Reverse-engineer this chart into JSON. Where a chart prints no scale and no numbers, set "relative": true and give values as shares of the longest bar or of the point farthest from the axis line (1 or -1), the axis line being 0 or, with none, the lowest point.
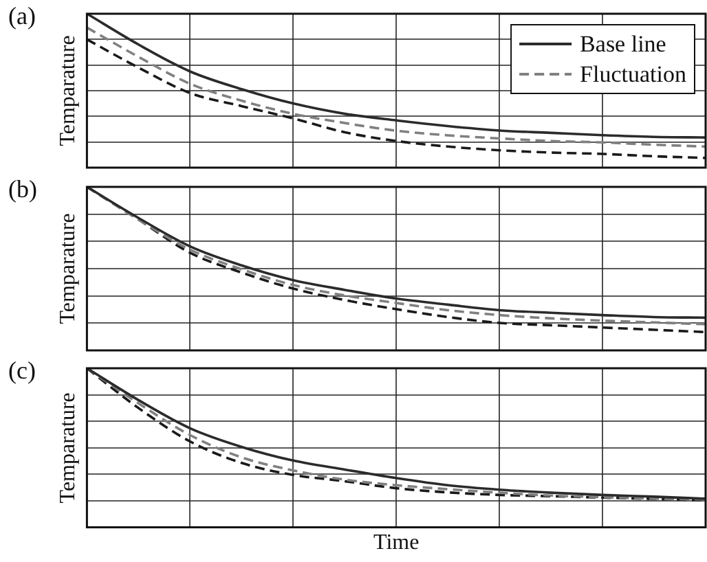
{
  "chart_data": [
    {
      "type": "line",
      "title": "(a)",
      "ylabel": "Temparature",
      "relative": true,
      "grid": true,
      "legend": "top right",
      "tick_labels": false,
      "categories": [
        null,
        null,
        null,
        null,
        null,
        null,
        null,
        null,
        null,
        null,
        null,
        null,
        null
      ],
      "series": [
        {
          "name": "Base line",
          "color": "#2b2b2b",
          "line_style": "solid",
          "values": [
            1.0,
            0.8,
            0.625,
            0.51,
            0.417,
            0.35,
            0.307,
            0.27,
            0.241,
            0.226,
            0.211,
            0.2,
            0.196
          ]
        },
        {
          "name": "Fluctuation",
          "color": "#808080",
          "line_style": "dashed",
          "values": [
            0.91,
            0.72,
            0.545,
            0.435,
            0.35,
            0.29,
            0.24,
            0.21,
            0.19,
            0.173,
            0.164,
            0.149,
            0.137
          ]
        },
        {
          "color": "#1a1a1a",
          "line_style": "dashed",
          "values": [
            0.833,
            0.65,
            0.485,
            0.4,
            0.32,
            0.23,
            0.173,
            0.137,
            0.113,
            0.098,
            0.089,
            0.074,
            0.063
          ]
        }
      ]
    },
    {
      "type": "line",
      "title": "(b)",
      "ylabel": "Temparature",
      "relative": true,
      "grid": true,
      "tick_labels": false,
      "categories": [
        null,
        null,
        null,
        null,
        null,
        null,
        null,
        null,
        null,
        null,
        null,
        null,
        null
      ],
      "series": [
        {
          "color": "#2b2b2b",
          "line_style": "solid",
          "values": [
            1.0,
            0.81,
            0.636,
            0.52,
            0.43,
            0.37,
            0.317,
            0.28,
            0.246,
            0.23,
            0.216,
            0.204,
            0.2
          ]
        },
        {
          "color": "#808080",
          "line_style": "dashed",
          "values": [
            1.0,
            0.8,
            0.616,
            0.496,
            0.4,
            0.336,
            0.29,
            0.246,
            0.216,
            0.196,
            0.182,
            0.171,
            0.16
          ]
        },
        {
          "color": "#1a1a1a",
          "line_style": "dashed",
          "values": [
            1.0,
            0.8,
            0.597,
            0.476,
            0.378,
            0.308,
            0.252,
            0.204,
            0.168,
            0.154,
            0.14,
            0.126,
            0.112
          ]
        }
      ]
    },
    {
      "type": "line",
      "title": "(c)",
      "ylabel": "Temparature",
      "xlabel": "Time",
      "relative": true,
      "grid": true,
      "tick_labels": false,
      "categories": [
        null,
        null,
        null,
        null,
        null,
        null,
        null,
        null,
        null,
        null,
        null,
        null,
        null
      ],
      "series": [
        {
          "color": "#2b2b2b",
          "line_style": "solid",
          "values": [
            1.0,
            0.8,
            0.623,
            0.506,
            0.42,
            0.363,
            0.31,
            0.265,
            0.237,
            0.218,
            0.204,
            0.193,
            0.18
          ]
        },
        {
          "color": "#808080",
          "line_style": "dashed",
          "values": [
            1.0,
            0.78,
            0.58,
            0.44,
            0.358,
            0.3,
            0.265,
            0.24,
            0.218,
            0.2,
            0.19,
            0.18,
            0.176
          ]
        },
        {
          "color": "#1a1a1a",
          "line_style": "dashed",
          "values": [
            1.0,
            0.75,
            0.54,
            0.405,
            0.33,
            0.29,
            0.246,
            0.22,
            0.204,
            0.196,
            0.187,
            0.179,
            0.17
          ]
        }
      ]
    }
  ]
}
